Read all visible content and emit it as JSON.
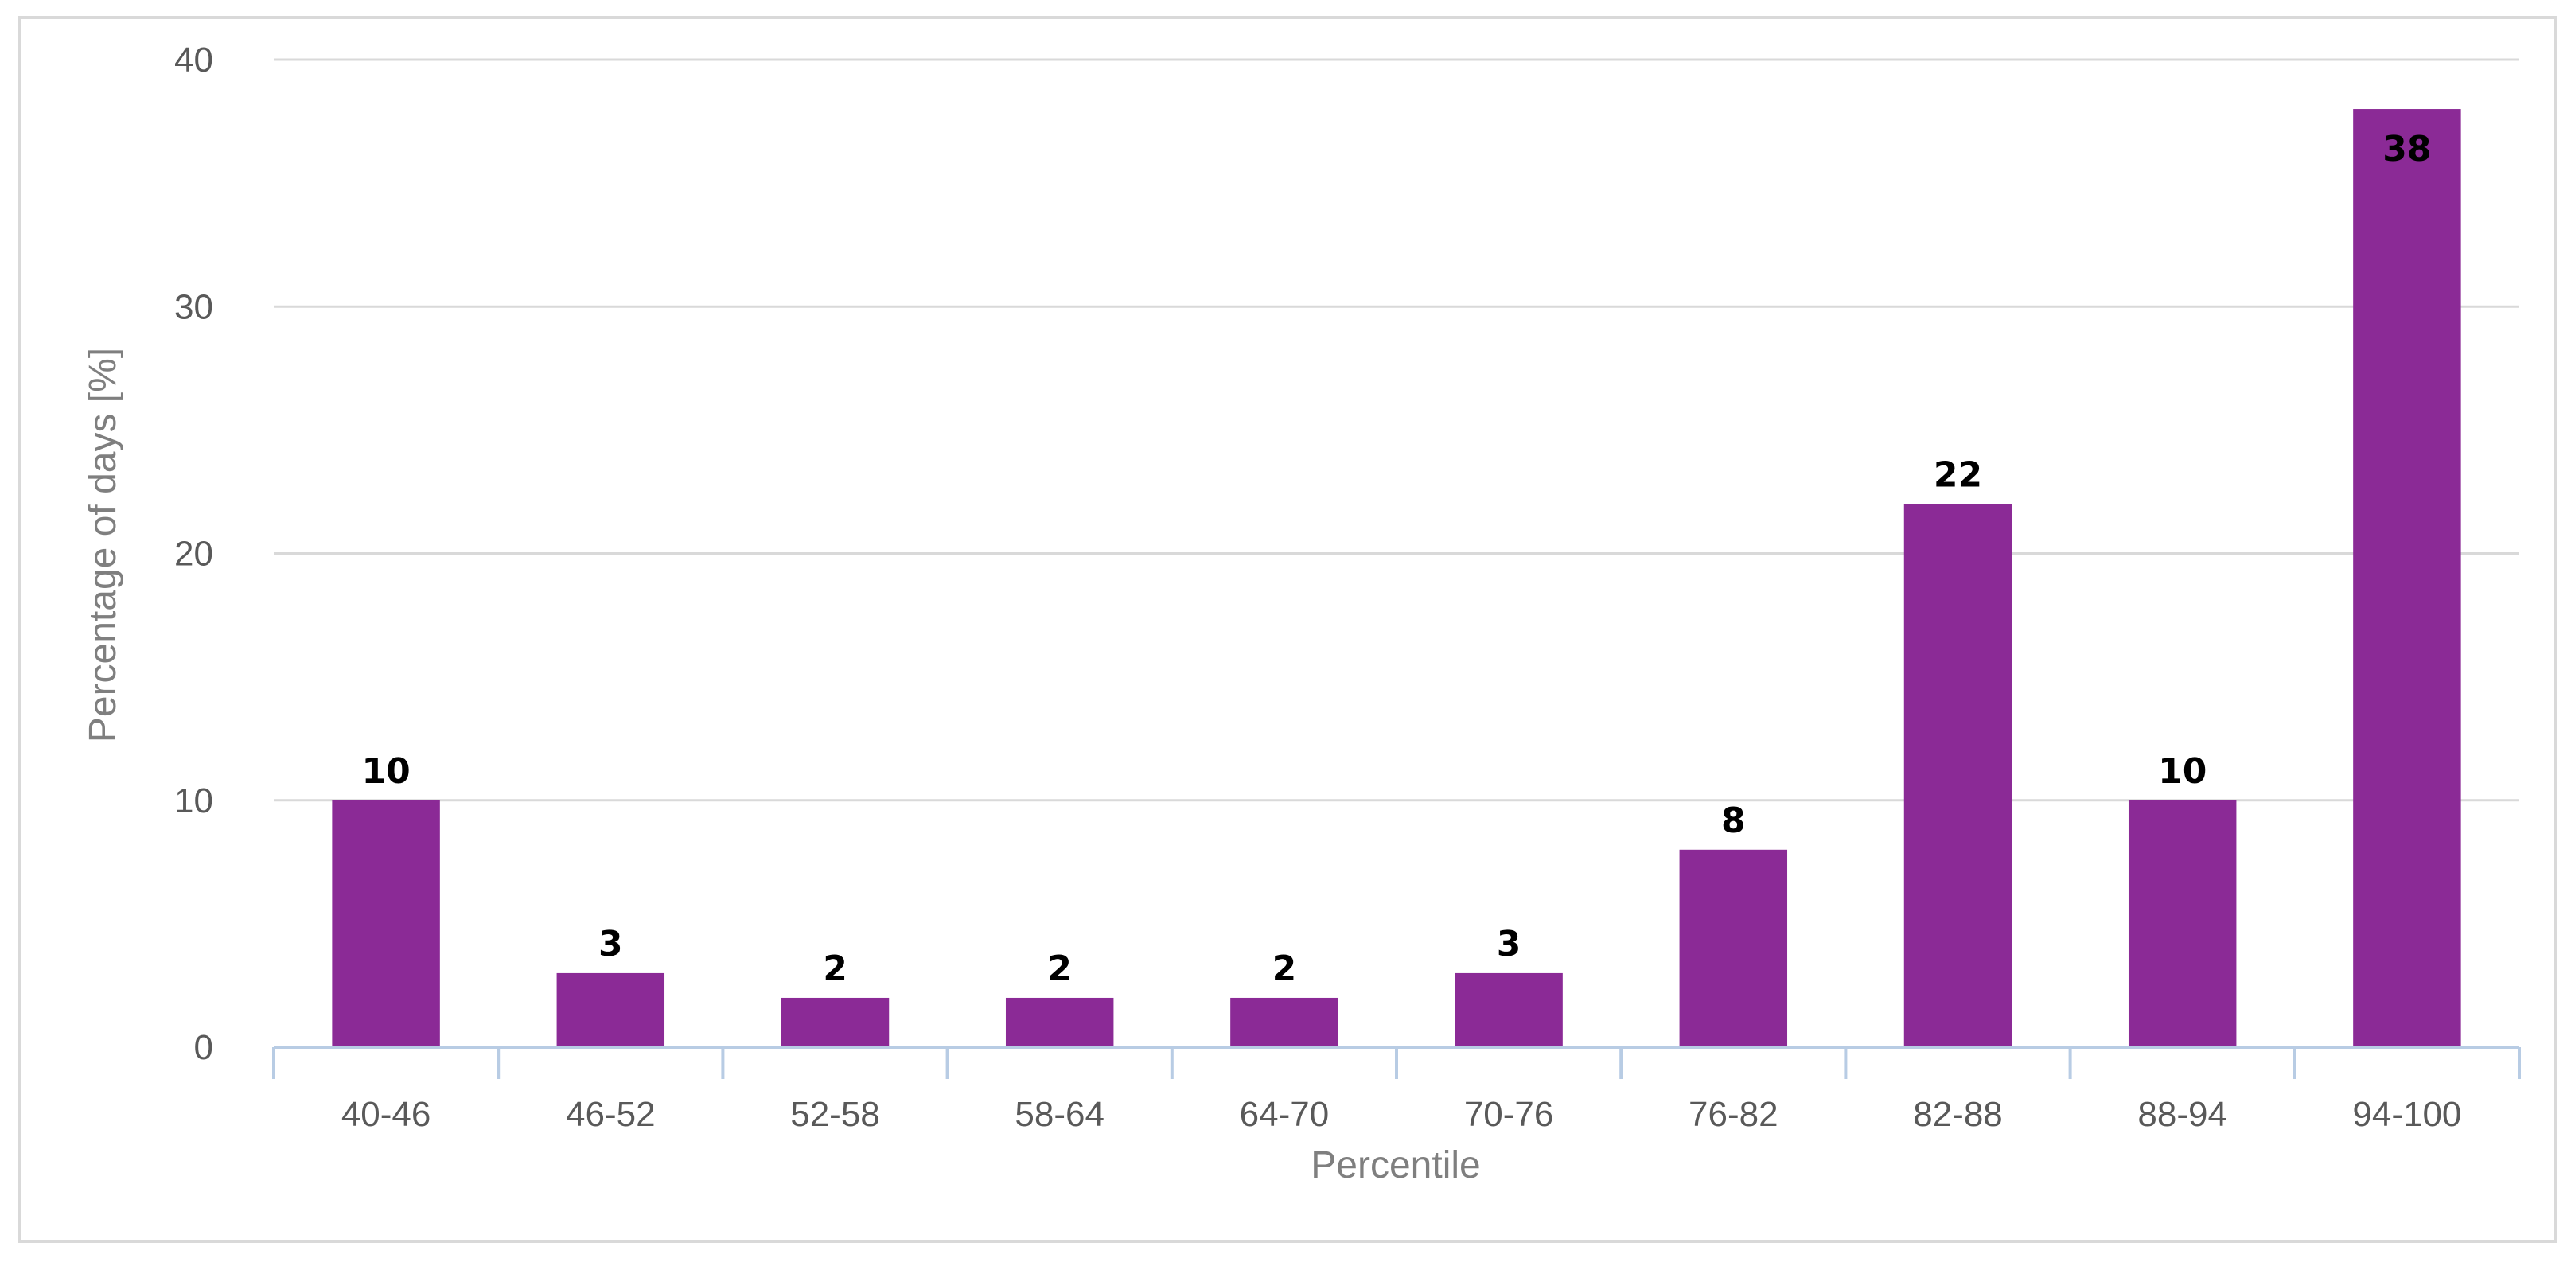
{
  "chart_data": {
    "type": "bar",
    "categories": [
      "40-46",
      "46-52",
      "52-58",
      "58-64",
      "64-70",
      "70-76",
      "76-82",
      "82-88",
      "88-94",
      "94-100"
    ],
    "values": [
      10,
      3,
      2,
      2,
      2,
      3,
      8,
      22,
      10,
      38
    ],
    "data_labels": [
      "10",
      "3",
      "2",
      "2",
      "2",
      "3",
      "8",
      "22",
      "10",
      "38"
    ],
    "xlabel": "Percentile",
    "ylabel": "Percentage of days [%]",
    "ylim": [
      0,
      40
    ],
    "yticks": [
      "0",
      "10",
      "20",
      "30",
      "40"
    ],
    "grid": true,
    "legend": "none",
    "colors": {
      "bar": "#8b2a96",
      "grid": "#d9d9d9",
      "x_axis": "#b8cce4",
      "tick_text": "#595959",
      "axis_title": "#7f7f7f"
    }
  }
}
